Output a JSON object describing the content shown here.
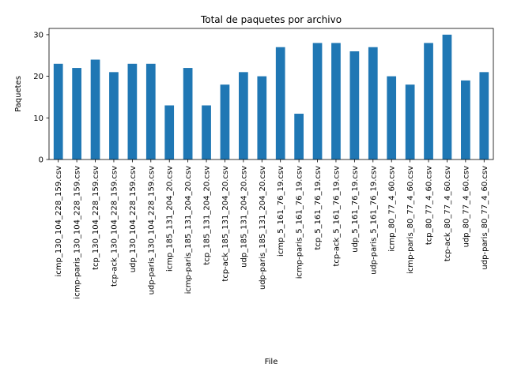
{
  "chart_data": {
    "type": "bar",
    "title": "Total de paquetes por archivo",
    "xlabel": "File",
    "ylabel": "Paquetes",
    "ylim": [
      0,
      31.5
    ],
    "yticks": [
      0,
      10,
      20,
      30
    ],
    "legend": "none",
    "grid": false,
    "bar_color": "#1f77b4",
    "categories": [
      "icmp_130_104_228_159.csv",
      "icmp-paris_130_104_228_159.csv",
      "tcp_130_104_228_159.csv",
      "tcp-ack_130_104_228_159.csv",
      "udp_130_104_228_159.csv",
      "udp-paris_130_104_228_159.csv",
      "icmp_185_131_204_20.csv",
      "icmp-paris_185_131_204_20.csv",
      "tcp_185_131_204_20.csv",
      "tcp-ack_185_131_204_20.csv",
      "udp_185_131_204_20.csv",
      "udp-paris_185_131_204_20.csv",
      "icmp_5_161_76_19.csv",
      "icmp-paris_5_161_76_19.csv",
      "tcp_5_161_76_19.csv",
      "tcp-ack_5_161_76_19.csv",
      "udp_5_161_76_19.csv",
      "udp-paris_5_161_76_19.csv",
      "icmp_80_77_4_60.csv",
      "icmp-paris_80_77_4_60.csv",
      "tcp_80_77_4_60.csv",
      "tcp-ack_80_77_4_60.csv",
      "udp_80_77_4_60.csv",
      "udp-paris_80_77_4_60.csv"
    ],
    "values": [
      23,
      22,
      24,
      21,
      23,
      23,
      13,
      22,
      13,
      18,
      21,
      20,
      27,
      11,
      28,
      28,
      26,
      27,
      20,
      18,
      28,
      30,
      19,
      21
    ]
  }
}
